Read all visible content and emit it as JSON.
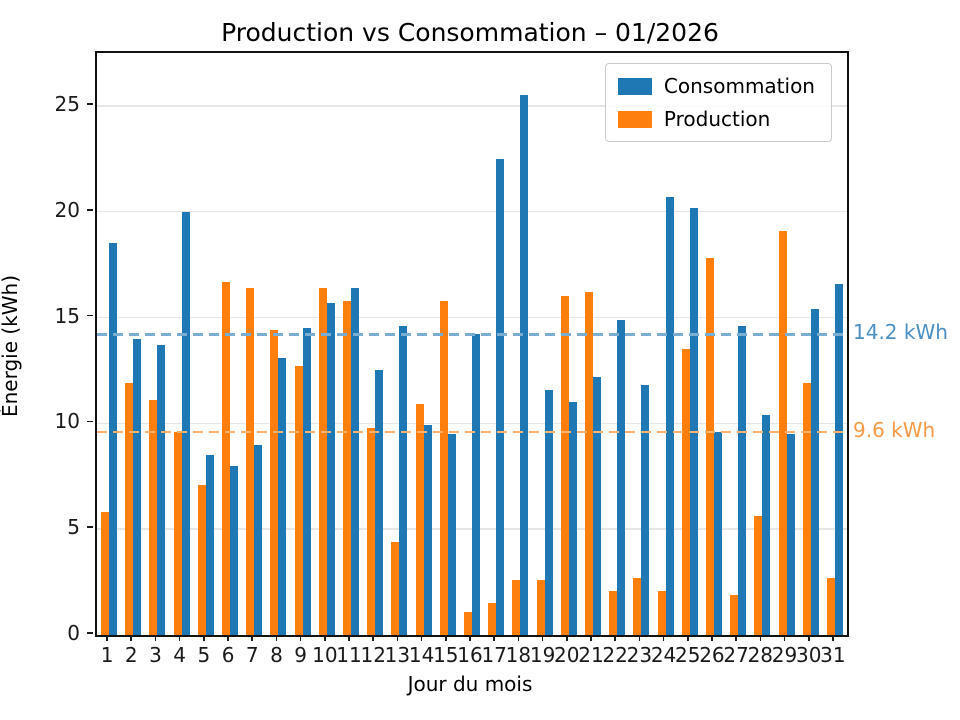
{
  "chart_data": {
    "type": "bar",
    "title": "Production vs Consommation – 01/2026",
    "xlabel": "Jour du mois",
    "ylabel": "Énergie (kWh)",
    "categories": [
      1,
      2,
      3,
      4,
      5,
      6,
      7,
      8,
      9,
      10,
      11,
      12,
      13,
      14,
      15,
      16,
      17,
      18,
      19,
      20,
      21,
      22,
      23,
      24,
      25,
      26,
      27,
      28,
      29,
      30,
      31
    ],
    "series": [
      {
        "name": "Consommation",
        "color": "#1f77b4",
        "values": [
          18.5,
          14.0,
          13.7,
          20.0,
          8.5,
          8.0,
          9.0,
          13.1,
          14.5,
          15.7,
          16.4,
          12.5,
          14.6,
          9.9,
          9.5,
          14.2,
          22.5,
          25.5,
          11.6,
          11.0,
          12.2,
          14.9,
          11.8,
          20.7,
          20.2,
          9.6,
          14.6,
          10.4,
          9.5,
          15.4,
          16.6
        ]
      },
      {
        "name": "Production",
        "color": "#ff7f0e",
        "values": [
          5.8,
          11.9,
          11.1,
          9.6,
          7.1,
          16.7,
          16.4,
          14.4,
          12.7,
          16.4,
          15.8,
          9.8,
          4.4,
          10.9,
          15.8,
          1.1,
          1.5,
          2.6,
          2.6,
          16.0,
          16.2,
          2.1,
          2.7,
          2.1,
          13.5,
          17.8,
          1.9,
          5.6,
          19.1,
          11.9,
          2.7
        ]
      }
    ],
    "bar_layout": "production drawn left of tick, consommation right of tick",
    "ylim": [
      0,
      27.5
    ],
    "yticks": [
      0,
      5,
      10,
      15,
      20,
      25
    ],
    "grid": true,
    "legend_position": "upper right",
    "reference_lines": [
      {
        "label": "14.2 kWh",
        "value": 14.2,
        "style": "dashed",
        "line_color": "#79aed2",
        "label_color": "#4c8fc3"
      },
      {
        "label": "9.6 kWh",
        "value": 9.6,
        "style": "dashed",
        "line_color": "#ffb26e",
        "label_color": "#f79a47"
      }
    ]
  }
}
